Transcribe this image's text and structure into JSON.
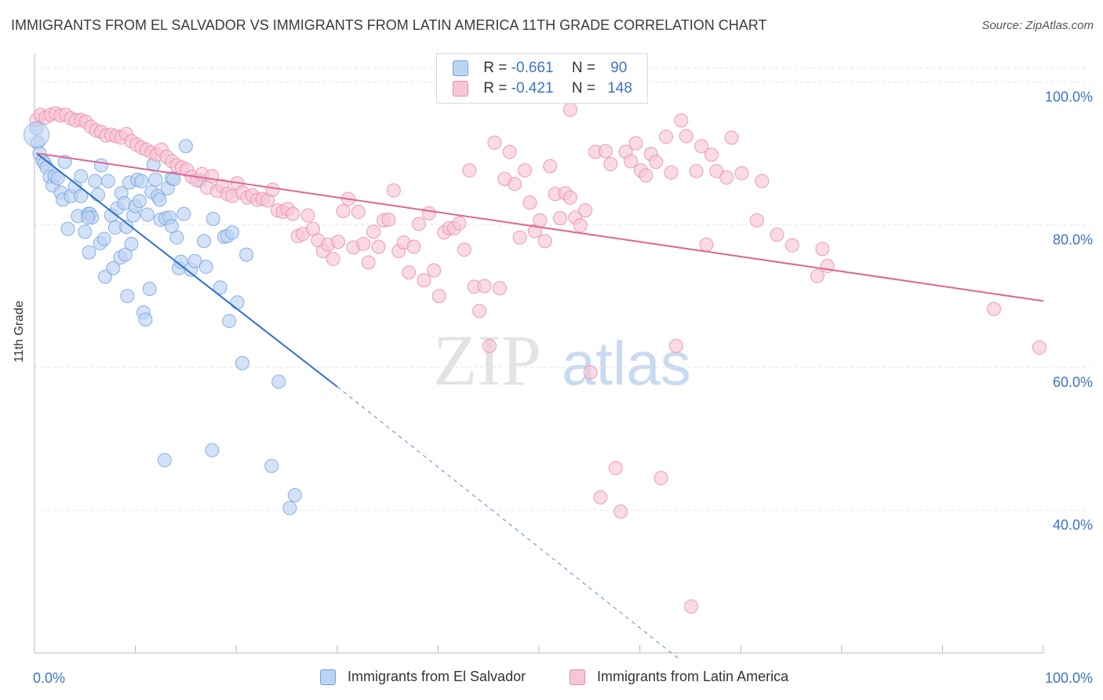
{
  "title": "IMMIGRANTS FROM EL SALVADOR VS IMMIGRANTS FROM LATIN AMERICA 11TH GRADE CORRELATION CHART",
  "source": "Source: ZipAtlas.com",
  "watermark": {
    "zip": "ZIP",
    "atlas": "atlas"
  },
  "legend": {
    "rows": [
      {
        "r_label": "R =",
        "r_value": "-0.661",
        "n_label": "N =",
        "n_value": "90"
      },
      {
        "r_label": "R =",
        "r_value": "-0.421",
        "n_label": "N =",
        "n_value": "148"
      }
    ]
  },
  "chart_data": {
    "type": "scatter",
    "title": "IMMIGRANTS FROM EL SALVADOR VS IMMIGRANTS FROM LATIN AMERICA 11TH GRADE CORRELATION CHART",
    "xlabel": "",
    "ylabel": "11th Grade",
    "xlim": [
      0,
      100
    ],
    "ylim": [
      20,
      104
    ],
    "x_tick_labels": [
      "0.0%",
      "100.0%"
    ],
    "y_ticks": [
      40,
      60,
      80,
      100
    ],
    "y_tick_labels": [
      "40.0%",
      "60.0%",
      "80.0%",
      "100.0%"
    ],
    "grid": true,
    "series": [
      {
        "name": "Immigrants from El Salvador",
        "color": "#6fa0e0",
        "fill": "#bcd3f2",
        "r": -0.661,
        "n": 90,
        "trend": {
          "x": [
            0.2,
            30
          ],
          "y": [
            90,
            57.3
          ],
          "dashed_to": [
            64,
            19
          ]
        },
        "points": [
          [
            0.2,
            93.5
          ],
          [
            0.3,
            91.5
          ],
          [
            0.5,
            90
          ],
          [
            0.8,
            89
          ],
          [
            1.0,
            88.6
          ],
          [
            1.2,
            88
          ],
          [
            1.5,
            86.7
          ],
          [
            1.8,
            85.5
          ],
          [
            2.0,
            86.8
          ],
          [
            2.3,
            86.5
          ],
          [
            2.6,
            84.5
          ],
          [
            2.8,
            83.5
          ],
          [
            3.0,
            88.8
          ],
          [
            3.3,
            79.4
          ],
          [
            3.6,
            84
          ],
          [
            4.0,
            85.3
          ],
          [
            4.3,
            81.2
          ],
          [
            4.6,
            86.8
          ],
          [
            4.6,
            84
          ],
          [
            5.0,
            79
          ],
          [
            5.3,
            81.5
          ],
          [
            5.4,
            76.1
          ],
          [
            5.5,
            81.5
          ],
          [
            5.7,
            81
          ],
          [
            6.0,
            86.1
          ],
          [
            6.3,
            84.2
          ],
          [
            6.5,
            77.4
          ],
          [
            6.6,
            88.3
          ],
          [
            6.9,
            78
          ],
          [
            7.0,
            72.7
          ],
          [
            7.3,
            86.1
          ],
          [
            7.6,
            81.3
          ],
          [
            7.8,
            73.9
          ],
          [
            8.0,
            79.6
          ],
          [
            8.2,
            82.3
          ],
          [
            8.5,
            75.4
          ],
          [
            8.6,
            84.4
          ],
          [
            8.9,
            83
          ],
          [
            9.0,
            75.8
          ],
          [
            9.2,
            70
          ],
          [
            9.4,
            85.9
          ],
          [
            9.6,
            77.3
          ],
          [
            9.8,
            81.3
          ],
          [
            10.0,
            82.6
          ],
          [
            10.2,
            86.3
          ],
          [
            10.4,
            83.3
          ],
          [
            10.6,
            86.1
          ],
          [
            10.8,
            67.7
          ],
          [
            11.0,
            66.7
          ],
          [
            11.2,
            81.4
          ],
          [
            11.4,
            71
          ],
          [
            11.6,
            84.6
          ],
          [
            11.8,
            88.4
          ],
          [
            12.0,
            86.3
          ],
          [
            12.2,
            84
          ],
          [
            12.4,
            83.5
          ],
          [
            12.5,
            80.7
          ],
          [
            12.9,
            47
          ],
          [
            13.0,
            80.9
          ],
          [
            13.2,
            85.1
          ],
          [
            13.4,
            81
          ],
          [
            13.6,
            86.5
          ],
          [
            13.8,
            86.4
          ],
          [
            14.1,
            78.2
          ],
          [
            14.3,
            73.9
          ],
          [
            14.5,
            74.8
          ],
          [
            14.8,
            81.5
          ],
          [
            15.0,
            91
          ],
          [
            15.5,
            73.7
          ],
          [
            15.9,
            74.9
          ],
          [
            16.4,
            86.2
          ],
          [
            16.8,
            77.7
          ],
          [
            17.0,
            74.1
          ],
          [
            17.6,
            48.4
          ],
          [
            18.4,
            71.2
          ],
          [
            18.8,
            78.3
          ],
          [
            19.1,
            78.4
          ],
          [
            19.3,
            66.5
          ],
          [
            19.6,
            78.9
          ],
          [
            20.1,
            69.1
          ],
          [
            20.6,
            60.6
          ],
          [
            21.0,
            75.8
          ],
          [
            23.5,
            46.2
          ],
          [
            24.2,
            58
          ],
          [
            25.3,
            40.3
          ],
          [
            25.8,
            42.1
          ],
          [
            5.3,
            81
          ],
          [
            9.1,
            79.7
          ],
          [
            13.6,
            79.8
          ],
          [
            17.7,
            80.8
          ]
        ]
      },
      {
        "name": "Immigrants from Latin America",
        "color": "#e68aa8",
        "fill": "#f7c6d5",
        "r": -0.421,
        "n": 148,
        "trend": {
          "x": [
            0.2,
            100
          ],
          "y": [
            90,
            69.3
          ]
        },
        "points": [
          [
            0.2,
            94.7
          ],
          [
            0.6,
            95.4
          ],
          [
            1.1,
            95
          ],
          [
            1.6,
            95.4
          ],
          [
            2.1,
            95.6
          ],
          [
            2.6,
            95.3
          ],
          [
            3.1,
            95.4
          ],
          [
            3.6,
            94.9
          ],
          [
            4.1,
            94.6
          ],
          [
            4.6,
            94.7
          ],
          [
            5.1,
            94.4
          ],
          [
            5.6,
            93.7
          ],
          [
            6.1,
            93.2
          ],
          [
            6.6,
            93
          ],
          [
            7.1,
            92.5
          ],
          [
            7.6,
            92.6
          ],
          [
            8.1,
            92.4
          ],
          [
            8.6,
            92.2
          ],
          [
            9.1,
            92.7
          ],
          [
            9.6,
            91.7
          ],
          [
            10.1,
            91.2
          ],
          [
            10.6,
            90.8
          ],
          [
            11.1,
            90.5
          ],
          [
            11.6,
            90.1
          ],
          [
            12.1,
            89.8
          ],
          [
            12.6,
            90.5
          ],
          [
            13.1,
            89.5
          ],
          [
            13.6,
            88.9
          ],
          [
            14.1,
            88.3
          ],
          [
            14.6,
            88
          ],
          [
            15.1,
            87.7
          ],
          [
            15.6,
            86.7
          ],
          [
            16.1,
            86.2
          ],
          [
            16.6,
            87.1
          ],
          [
            17.1,
            85.2
          ],
          [
            17.6,
            86.8
          ],
          [
            18.1,
            84.7
          ],
          [
            18.6,
            85.4
          ],
          [
            19.1,
            84.3
          ],
          [
            19.6,
            84
          ],
          [
            20.1,
            85.8
          ],
          [
            20.6,
            84.5
          ],
          [
            21.1,
            83.8
          ],
          [
            21.6,
            84.1
          ],
          [
            22.1,
            83.5
          ],
          [
            22.6,
            83.6
          ],
          [
            23.1,
            83.4
          ],
          [
            23.6,
            84.9
          ],
          [
            24.1,
            82
          ],
          [
            24.6,
            81.8
          ],
          [
            25.1,
            82.2
          ],
          [
            25.6,
            81.5
          ],
          [
            26.1,
            78.4
          ],
          [
            26.6,
            78.7
          ],
          [
            27.1,
            81.3
          ],
          [
            27.6,
            79.4
          ],
          [
            28.1,
            77.8
          ],
          [
            28.6,
            76.3
          ],
          [
            29.1,
            77.2
          ],
          [
            29.6,
            75.2
          ],
          [
            30.1,
            77.6
          ],
          [
            30.6,
            81.9
          ],
          [
            31.1,
            83.6
          ],
          [
            31.6,
            76.8
          ],
          [
            32.1,
            81.8
          ],
          [
            32.6,
            77.3
          ],
          [
            33.1,
            74.7
          ],
          [
            33.6,
            79
          ],
          [
            34.1,
            76.9
          ],
          [
            34.6,
            80.6
          ],
          [
            35.1,
            80.7
          ],
          [
            35.6,
            84.8
          ],
          [
            36.1,
            76.3
          ],
          [
            36.6,
            77.5
          ],
          [
            37.1,
            73.3
          ],
          [
            37.6,
            76.9
          ],
          [
            38.1,
            80.1
          ],
          [
            38.6,
            72.2
          ],
          [
            39.1,
            81.6
          ],
          [
            39.6,
            73.6
          ],
          [
            40.1,
            70
          ],
          [
            40.6,
            78.9
          ],
          [
            41.1,
            79.5
          ],
          [
            41.6,
            79.5
          ],
          [
            42.1,
            80.2
          ],
          [
            42.6,
            76.5
          ],
          [
            43.1,
            87.6
          ],
          [
            43.6,
            71.3
          ],
          [
            44.1,
            67.9
          ],
          [
            44.6,
            71.4
          ],
          [
            45.1,
            63
          ],
          [
            45.6,
            91.5
          ],
          [
            46.1,
            71.1
          ],
          [
            46.6,
            86.4
          ],
          [
            47.1,
            90.2
          ],
          [
            47.6,
            85.7
          ],
          [
            48.1,
            78.2
          ],
          [
            48.6,
            87.6
          ],
          [
            49.1,
            83.1
          ],
          [
            49.6,
            79.1
          ],
          [
            50.1,
            80.6
          ],
          [
            50.6,
            77.7
          ],
          [
            51.1,
            88.2
          ],
          [
            51.6,
            84.3
          ],
          [
            52.1,
            80.9
          ],
          [
            52.6,
            84.4
          ],
          [
            53.1,
            83.8
          ],
          [
            53.6,
            81
          ],
          [
            54.1,
            79.9
          ],
          [
            54.6,
            82
          ],
          [
            55.1,
            59.3
          ],
          [
            55.6,
            90.2
          ],
          [
            56.1,
            41.8
          ],
          [
            56.6,
            90.3
          ],
          [
            57.1,
            88.5
          ],
          [
            57.6,
            45.9
          ],
          [
            58.1,
            39.8
          ],
          [
            58.6,
            90.2
          ],
          [
            59.1,
            88.9
          ],
          [
            59.6,
            91.4
          ],
          [
            60.1,
            87.6
          ],
          [
            60.6,
            86.9
          ],
          [
            61.1,
            89.9
          ],
          [
            61.6,
            88.8
          ],
          [
            62.1,
            44.5
          ],
          [
            62.6,
            92.3
          ],
          [
            63.1,
            87.3
          ],
          [
            63.6,
            63
          ],
          [
            64.1,
            94.6
          ],
          [
            64.6,
            92.4
          ],
          [
            65.1,
            26.5
          ],
          [
            65.6,
            87.5
          ],
          [
            66.1,
            91
          ],
          [
            66.6,
            77.2
          ],
          [
            67.1,
            89.8
          ],
          [
            67.6,
            87.5
          ],
          [
            68.6,
            86.6
          ],
          [
            69.1,
            92.2
          ],
          [
            70.1,
            87.2
          ],
          [
            72.1,
            86.1
          ],
          [
            75.1,
            77.1
          ],
          [
            71.6,
            80.6
          ],
          [
            73.6,
            78.6
          ],
          [
            77.6,
            72.8
          ],
          [
            78.1,
            76.6
          ],
          [
            78.6,
            74.2
          ],
          [
            95.1,
            68.2
          ],
          [
            99.6,
            62.8
          ],
          [
            53.1,
            96.1
          ]
        ]
      }
    ]
  }
}
